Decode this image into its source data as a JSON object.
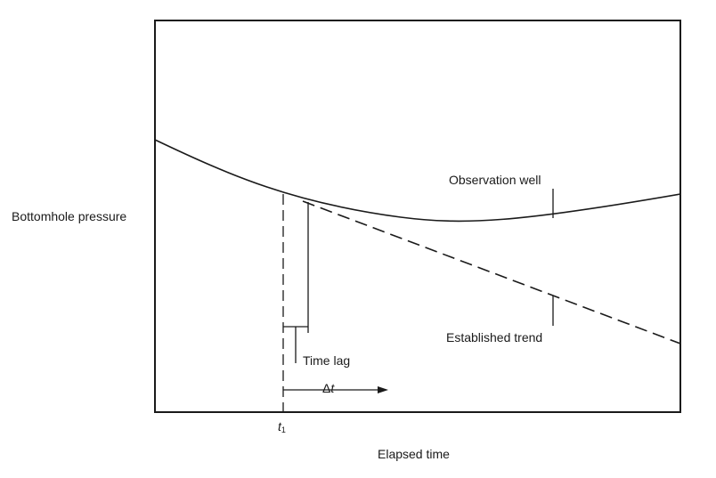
{
  "y_axis_label": "Bottomhole pressure",
  "x_axis_label": "Elapsed time",
  "curve_labels": {
    "observation": "Observation well",
    "trend": "Established trend"
  },
  "annotations": {
    "time_lag": "Time lag",
    "t1_symbol": "t",
    "t1_subscript": "1",
    "delta_symbol": "Δ",
    "delta_var": "t"
  }
}
